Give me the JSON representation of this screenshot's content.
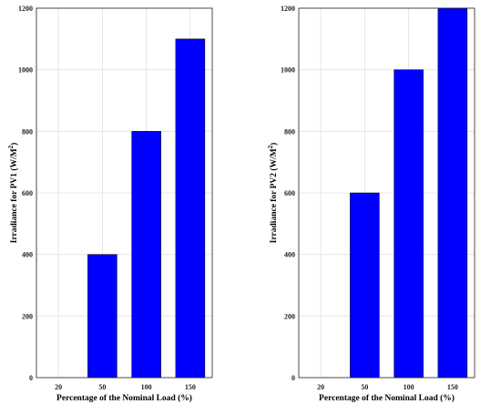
{
  "chart_data": [
    {
      "type": "bar",
      "categories": [
        "20",
        "50",
        "100",
        "150"
      ],
      "values": [
        0,
        400,
        800,
        1100
      ],
      "xlabel": "Percentage of the Nominal Load (%)",
      "ylabel": "Irradiance for PV1 (W/M",
      "ylabel_sup": "2",
      "ylabel_tail": ")",
      "ylim": [
        0,
        1200
      ],
      "yticks": [
        "0",
        "200",
        "400",
        "600",
        "800",
        "1000",
        "1200"
      ],
      "grid": true,
      "bar_color": "#0000ff"
    },
    {
      "type": "bar",
      "categories": [
        "20",
        "50",
        "100",
        "150"
      ],
      "values": [
        0,
        600,
        1000,
        1200
      ],
      "xlabel": "Percentage of the Nominal Load (%)",
      "ylabel": "Irradiance for PV2 (W/M",
      "ylabel_sup": "2",
      "ylabel_tail": ")",
      "ylim": [
        0,
        1200
      ],
      "yticks": [
        "0",
        "200",
        "400",
        "600",
        "800",
        "1000",
        "1200"
      ],
      "grid": true,
      "bar_color": "#0000ff"
    }
  ]
}
